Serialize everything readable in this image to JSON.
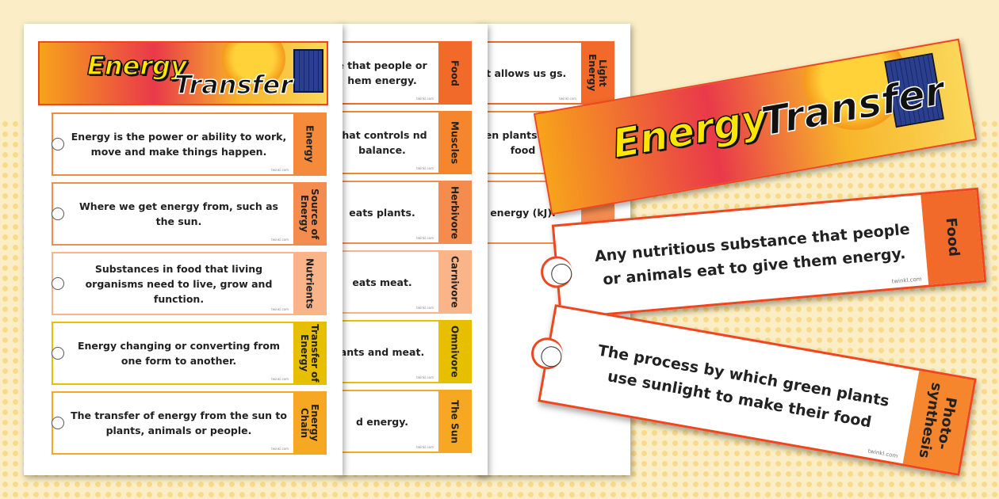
{
  "title": {
    "word1": "Energy",
    "word2": "Transfer"
  },
  "watermark": "twinkl.com",
  "colors": {
    "border": "#f0461e",
    "tab_orange": "#f47d30",
    "tab_light": "#f9b08a",
    "tab_yellow": "#e5be00",
    "tab_amber": "#f6a623"
  },
  "sheet1": [
    {
      "text": "Energy is the power or ability to work, move and make things happen.",
      "term": "Energy",
      "color": "#f58a3a"
    },
    {
      "text": "Where we get energy from, such as the sun.",
      "term": "Source of Energy",
      "color": "#f48c50"
    },
    {
      "text": "Substances in food that living organisms need to live, grow and function.",
      "term": "Nutrients",
      "color": "#f9b489"
    },
    {
      "text": "Energy changing or converting from one form to another.",
      "term": "Transfer of Energy",
      "color": "#e6c000"
    },
    {
      "text": "The transfer of energy from the sun to plants, animals or people.",
      "term": "Energy Chain",
      "color": "#f7a823"
    }
  ],
  "sheet2": [
    {
      "text": "e that people or hem energy.",
      "term": "Food",
      "color": "#f26a2a"
    },
    {
      "text": "that controls nd balance.",
      "term": "Muscles",
      "color": "#f5862e"
    },
    {
      "text": "eats plants.",
      "term": "Herbivore",
      "color": "#f48c50"
    },
    {
      "text": "eats meat.",
      "term": "Carnivore",
      "color": "#f9b489"
    },
    {
      "text": "ants and meat.",
      "term": "Omnivore",
      "color": "#e6c000"
    },
    {
      "text": "d energy.",
      "term": "The Sun",
      "color": "#f7a823"
    }
  ],
  "sheet3": [
    {
      "text": "at allows us gs.",
      "term": "Light Energy",
      "color": "#f26a2a"
    },
    {
      "text": "een plants their food",
      "term": "",
      "color": "#f5862e"
    },
    {
      "text": "energy (kJ).",
      "term": "",
      "color": "#f48c50"
    }
  ],
  "featured": [
    {
      "text": "Any nutritious substance that people or animals eat to give them energy.",
      "term": "Food",
      "color": "#f26a2a"
    },
    {
      "text": "The process by which green plants use sunlight to make their food",
      "term": "Photo-synthesis",
      "color": "#f5862e"
    }
  ]
}
